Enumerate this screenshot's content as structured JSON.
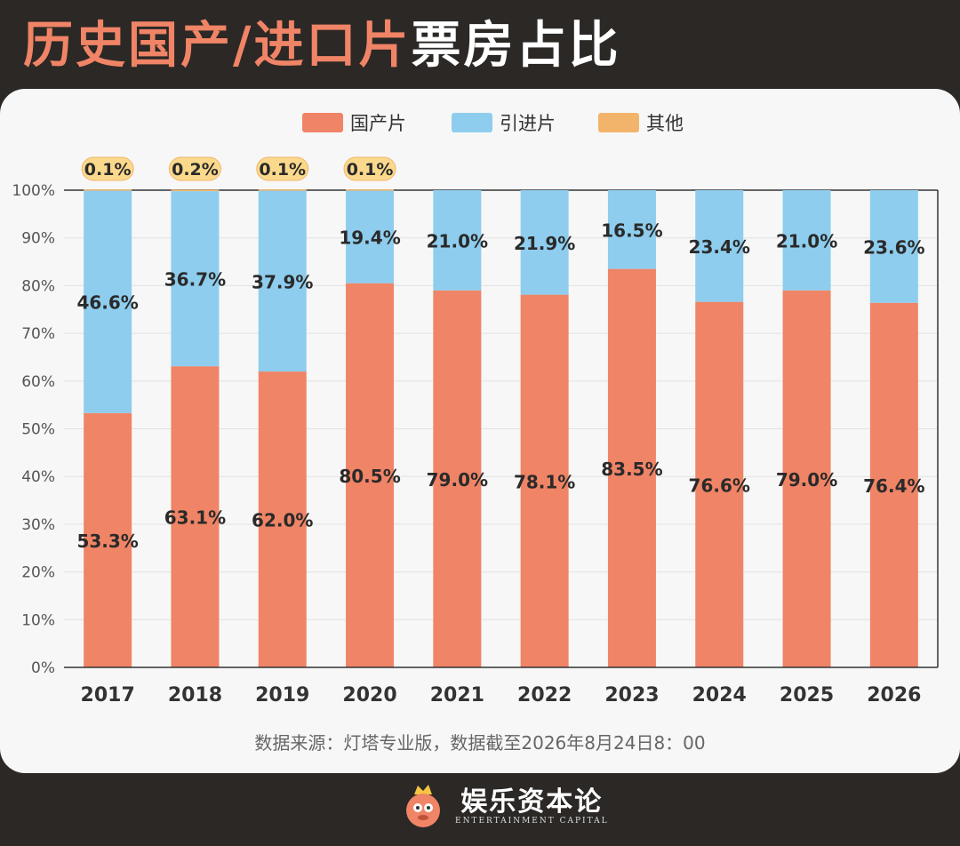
{
  "title": {
    "part1": "历史国产/进口片",
    "part2": "票房占比"
  },
  "source": "数据来源：灯塔专业版，数据截至2026年8月24日8：00",
  "brand": {
    "name_cn": "娱乐资本论",
    "name_en": "ENTERTAINMENT CAPITAL"
  },
  "colors": {
    "domestic": "#f08466",
    "imported": "#8ecdee",
    "other": "#f2b46b"
  },
  "chart_data": {
    "type": "bar",
    "stacked": true,
    "categories": [
      "2017",
      "2018",
      "2019",
      "2020",
      "2021",
      "2022",
      "2023",
      "2024",
      "2025",
      "2026"
    ],
    "series": [
      {
        "name": "国产片",
        "values": [
          53.3,
          63.1,
          62.0,
          80.5,
          79.0,
          78.1,
          83.5,
          76.6,
          79.0,
          76.4
        ]
      },
      {
        "name": "引进片",
        "values": [
          46.6,
          36.7,
          37.9,
          19.4,
          21.0,
          21.9,
          16.5,
          23.4,
          21.0,
          23.6
        ]
      },
      {
        "name": "其他",
        "values": [
          0.1,
          0.2,
          0.1,
          0.1,
          null,
          null,
          null,
          null,
          null,
          null
        ]
      }
    ],
    "yticks": [
      "0%",
      "10%",
      "20%",
      "30%",
      "40%",
      "50%",
      "60%",
      "70%",
      "80%",
      "90%",
      "100%"
    ],
    "ylim": [
      0,
      100
    ],
    "grid": true,
    "legend": "top-center",
    "value_suffix": "%"
  }
}
